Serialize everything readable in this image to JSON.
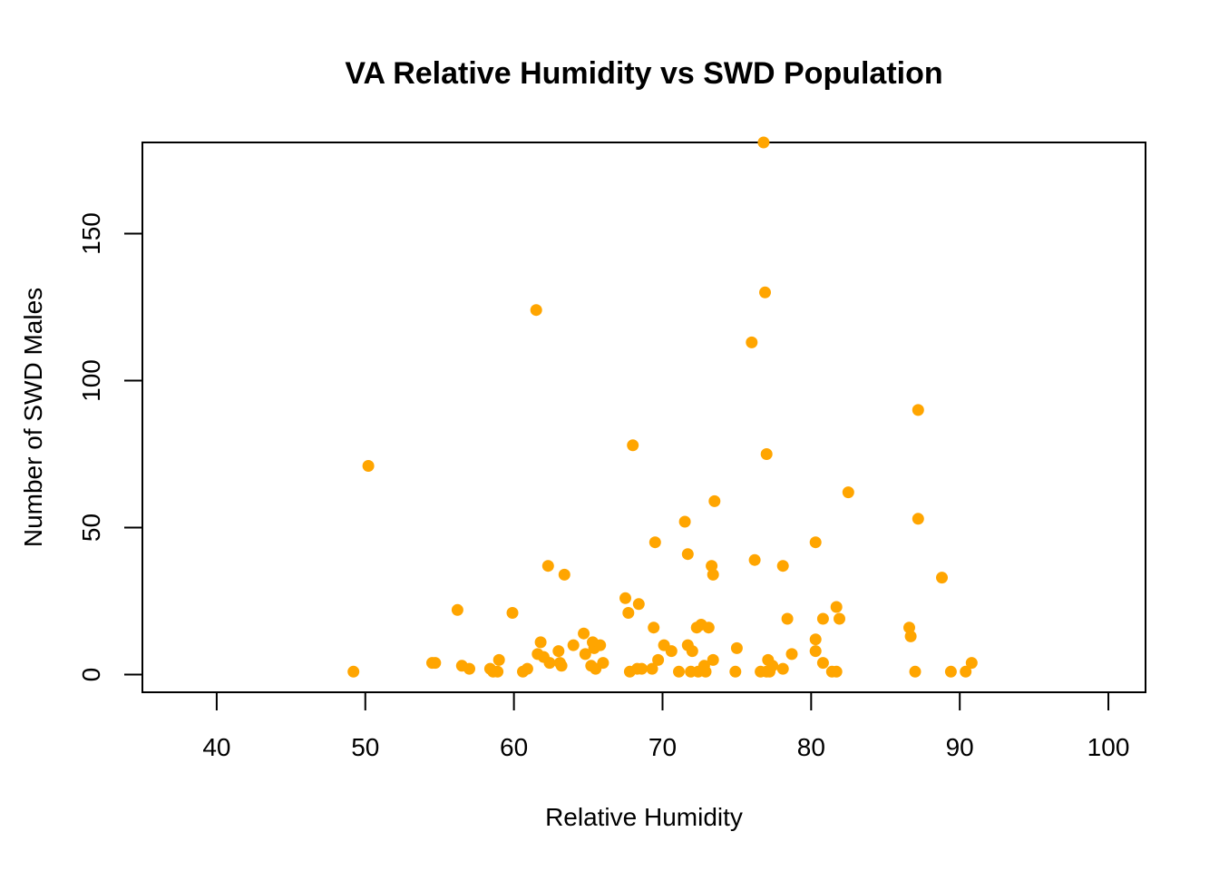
{
  "chart_data": {
    "type": "scatter",
    "title": "VA Relative Humidity vs SWD Population",
    "xlabel": "Relative Humidity",
    "ylabel": "Number of SWD Males",
    "xlim": [
      35,
      102.5
    ],
    "ylim": [
      -6,
      181
    ],
    "x_ticks": [
      40,
      50,
      60,
      70,
      80,
      90,
      100
    ],
    "y_ticks": [
      0,
      50,
      100,
      150
    ],
    "grid": false,
    "legend": "none",
    "point_color": "#FFA500",
    "series": [
      {
        "values": [
          [
            49.2,
            1
          ],
          [
            50.2,
            71
          ],
          [
            54.5,
            4
          ],
          [
            54.7,
            4
          ],
          [
            56.2,
            22
          ],
          [
            56.5,
            3
          ],
          [
            57.0,
            2
          ],
          [
            58.4,
            2
          ],
          [
            58.6,
            1
          ],
          [
            58.9,
            1
          ],
          [
            59.0,
            5
          ],
          [
            59.9,
            21
          ],
          [
            60.6,
            1
          ],
          [
            60.9,
            2
          ],
          [
            61.5,
            124
          ],
          [
            61.6,
            7
          ],
          [
            61.8,
            11
          ],
          [
            62.0,
            6
          ],
          [
            62.3,
            37
          ],
          [
            62.4,
            4
          ],
          [
            63.0,
            8
          ],
          [
            63.1,
            4
          ],
          [
            63.2,
            3
          ],
          [
            63.4,
            34
          ],
          [
            64.0,
            10
          ],
          [
            64.7,
            14
          ],
          [
            64.8,
            7
          ],
          [
            65.2,
            3
          ],
          [
            65.3,
            11
          ],
          [
            65.4,
            9
          ],
          [
            65.5,
            2
          ],
          [
            65.8,
            10
          ],
          [
            66.0,
            4
          ],
          [
            67.5,
            26
          ],
          [
            67.7,
            21
          ],
          [
            67.8,
            1
          ],
          [
            68.0,
            78
          ],
          [
            68.3,
            2
          ],
          [
            68.4,
            24
          ],
          [
            68.6,
            2
          ],
          [
            69.3,
            2
          ],
          [
            69.4,
            16
          ],
          [
            69.5,
            45
          ],
          [
            69.7,
            5
          ],
          [
            70.1,
            10
          ],
          [
            70.6,
            8
          ],
          [
            71.1,
            1
          ],
          [
            71.5,
            52
          ],
          [
            71.7,
            41
          ],
          [
            71.7,
            10
          ],
          [
            71.9,
            1
          ],
          [
            72.0,
            8
          ],
          [
            72.3,
            16
          ],
          [
            72.4,
            1
          ],
          [
            72.6,
            17
          ],
          [
            72.8,
            3
          ],
          [
            72.9,
            1
          ],
          [
            73.1,
            16
          ],
          [
            73.3,
            37
          ],
          [
            73.4,
            34
          ],
          [
            73.4,
            5
          ],
          [
            73.5,
            59
          ],
          [
            74.9,
            1
          ],
          [
            75.0,
            9
          ],
          [
            76.0,
            113
          ],
          [
            76.2,
            39
          ],
          [
            76.6,
            1
          ],
          [
            76.8,
            181
          ],
          [
            76.9,
            130
          ],
          [
            77.0,
            1
          ],
          [
            77.0,
            75
          ],
          [
            77.1,
            5
          ],
          [
            77.2,
            1
          ],
          [
            77.4,
            3
          ],
          [
            78.1,
            2
          ],
          [
            78.1,
            37
          ],
          [
            78.4,
            19
          ],
          [
            78.7,
            7
          ],
          [
            80.3,
            45
          ],
          [
            80.3,
            12
          ],
          [
            80.3,
            8
          ],
          [
            80.8,
            19
          ],
          [
            80.8,
            4
          ],
          [
            81.4,
            1
          ],
          [
            81.7,
            23
          ],
          [
            81.7,
            1
          ],
          [
            81.9,
            19
          ],
          [
            82.5,
            62
          ],
          [
            86.6,
            16
          ],
          [
            86.7,
            13
          ],
          [
            87.0,
            1
          ],
          [
            87.2,
            90
          ],
          [
            87.2,
            53
          ],
          [
            88.8,
            33
          ],
          [
            89.4,
            1
          ],
          [
            90.4,
            1
          ],
          [
            90.8,
            4
          ]
        ]
      }
    ]
  }
}
